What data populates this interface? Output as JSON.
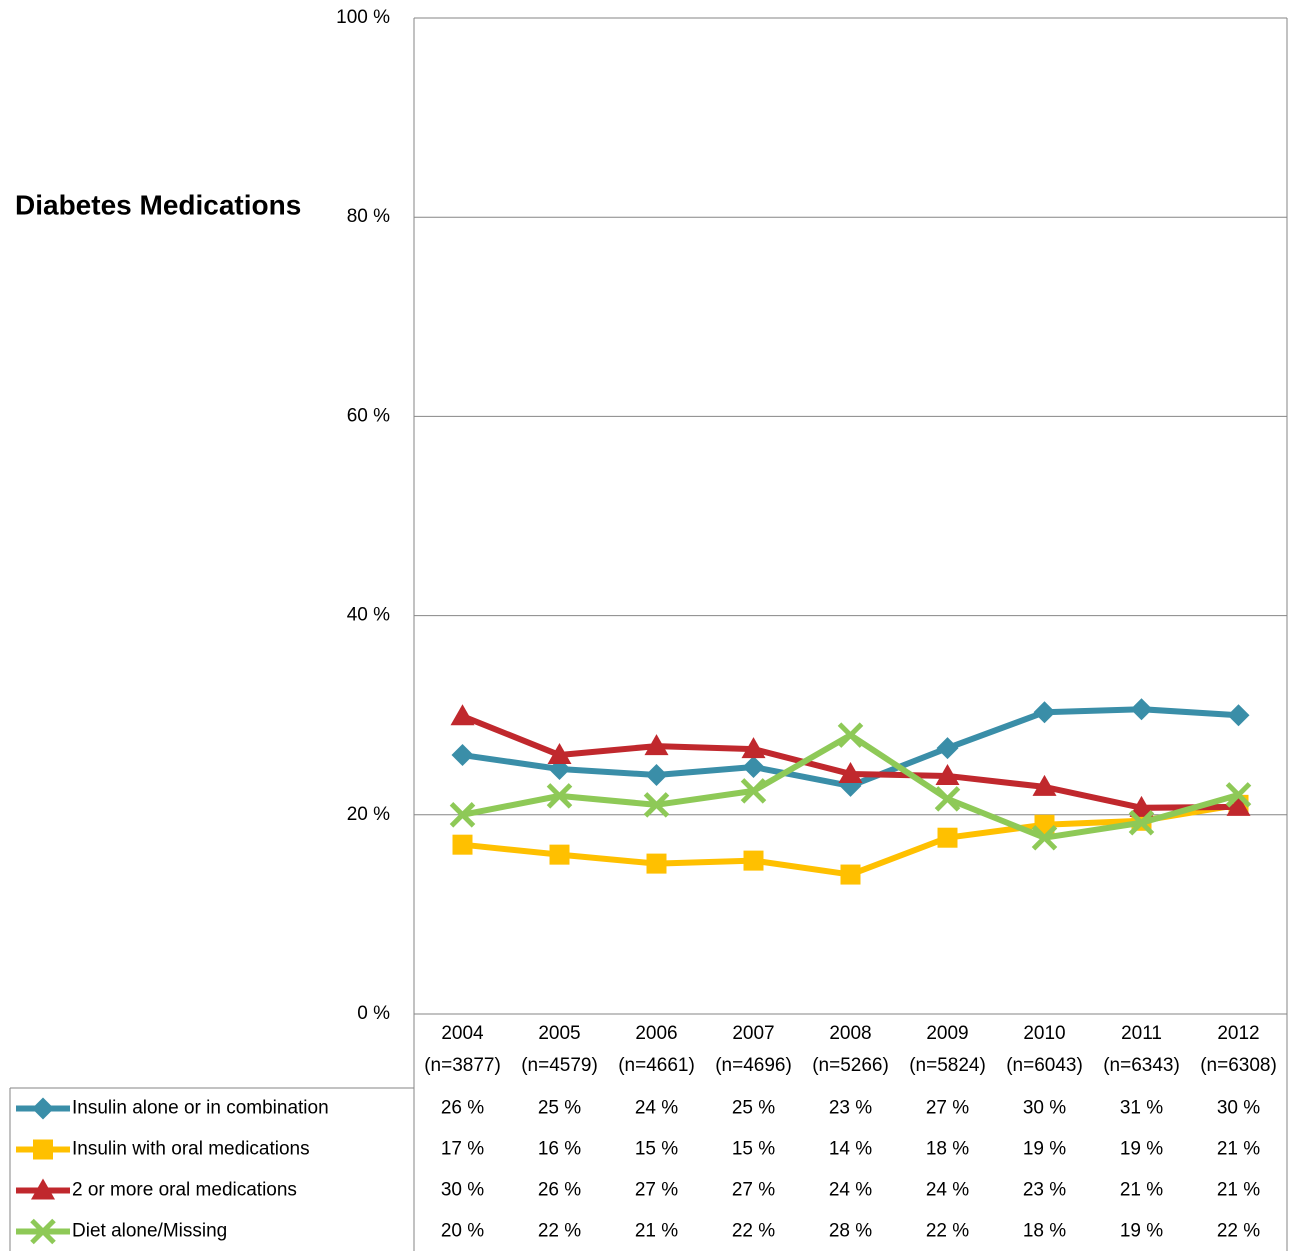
{
  "chart_data": {
    "type": "line",
    "title": "Diabetes Medications",
    "categories": [
      [
        "2004",
        "(n=3877)"
      ],
      [
        "2005",
        "(n=4579)"
      ],
      [
        "2006",
        "(n=4661)"
      ],
      [
        "2007",
        "(n=4696)"
      ],
      [
        "2008",
        "(n=5266)"
      ],
      [
        "2009",
        "(n=5824)"
      ],
      [
        "2010",
        "(n=6043)"
      ],
      [
        "2011",
        "(n=6343)"
      ],
      [
        "2012",
        "(n=6308)"
      ]
    ],
    "ylim": [
      0,
      100
    ],
    "yticks": [
      {
        "value": 0,
        "label": "0 %"
      },
      {
        "value": 20,
        "label": "20 %"
      },
      {
        "value": 40,
        "label": "40 %"
      },
      {
        "value": 60,
        "label": "60 %"
      },
      {
        "value": 80,
        "label": "80 %"
      },
      {
        "value": 100,
        "label": "100 %"
      }
    ],
    "grid": true,
    "series": [
      {
        "name": "Insulin alone or in combination",
        "color": "#3a8ea8",
        "marker": "diamond",
        "values": [
          26.0,
          24.6,
          24.0,
          24.8,
          22.9,
          26.7,
          30.3,
          30.6,
          30.0
        ],
        "value_labels": [
          "26 %",
          "25 %",
          "24 %",
          "25 %",
          "23 %",
          "27 %",
          "30 %",
          "31 %",
          "30 %"
        ]
      },
      {
        "name": "Insulin with oral medications",
        "color": "#ffc000",
        "marker": "square",
        "values": [
          17.0,
          16.0,
          15.1,
          15.4,
          14.0,
          17.7,
          19.0,
          19.4,
          21.0
        ],
        "value_labels": [
          "17 %",
          "16 %",
          "15 %",
          "15 %",
          "14 %",
          "18 %",
          "19 %",
          "19 %",
          "21 %"
        ]
      },
      {
        "name": "2 or more oral medications",
        "color": "#c0282d",
        "marker": "triangle",
        "values": [
          29.9,
          26.0,
          26.9,
          26.6,
          24.1,
          23.9,
          22.8,
          20.7,
          20.8
        ],
        "value_labels": [
          "30 %",
          "26 %",
          "27 %",
          "27 %",
          "24 %",
          "24 %",
          "23 %",
          "21 %",
          "21 %"
        ]
      },
      {
        "name": "Diet alone/Missing",
        "color": "#8ec957",
        "marker": "x",
        "values": [
          20.0,
          21.9,
          21.0,
          22.4,
          28.0,
          21.6,
          17.7,
          19.2,
          22.0
        ],
        "value_labels": [
          "20 %",
          "22 %",
          "21 %",
          "22 %",
          "28 %",
          "22 %",
          "18 %",
          "19 %",
          "22 %"
        ]
      }
    ]
  }
}
